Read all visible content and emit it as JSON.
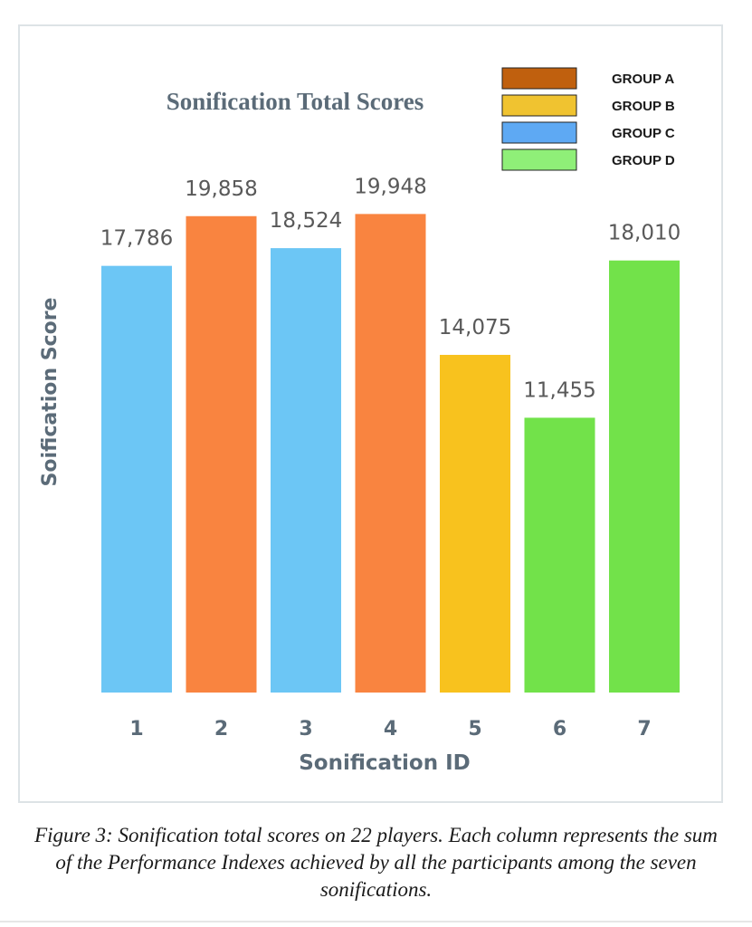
{
  "chart_data": {
    "type": "bar",
    "title": "Sonification Total Scores",
    "xlabel": "Sonification ID",
    "ylabel": "Soification Score",
    "categories": [
      "1",
      "2",
      "3",
      "4",
      "5",
      "6",
      "7"
    ],
    "values": [
      17786,
      19858,
      18524,
      19948,
      14075,
      11455,
      18010
    ],
    "value_labels": [
      "17,786",
      "19,858",
      "18,524",
      "19,948",
      "14,075",
      "11,455",
      "18,010"
    ],
    "bar_groups": [
      "GROUP C",
      "GROUP A",
      "GROUP C",
      "GROUP A",
      "GROUP B",
      "GROUP D",
      "GROUP D"
    ],
    "ylim": [
      0,
      20000
    ],
    "grid": false,
    "legend_position": "top-right",
    "legend": [
      {
        "name": "GROUP A",
        "swatch": "#c0600e",
        "bar": "#f98440"
      },
      {
        "name": "GROUP B",
        "swatch": "#f0c330",
        "bar": "#f8c21e"
      },
      {
        "name": "GROUP C",
        "swatch": "#5ea9f3",
        "bar": "#6cc6f5"
      },
      {
        "name": "GROUP D",
        "swatch": "#8fef78",
        "bar": "#72e24a"
      }
    ]
  },
  "caption": "Figure 3: Sonification total scores on 22 players. Each column represents the sum of the Performance Indexes achieved by all the participants among the seven sonifications."
}
